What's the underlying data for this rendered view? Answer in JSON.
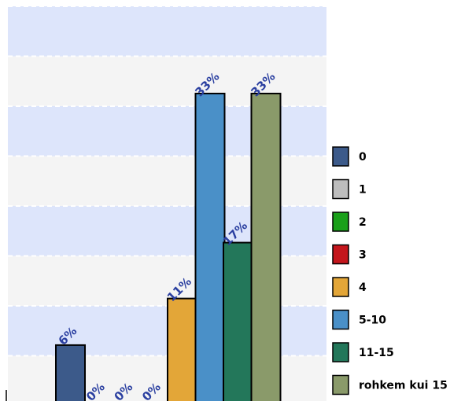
{
  "chart_data": {
    "type": "bar",
    "title": "",
    "xlabel": "",
    "ylabel": "",
    "ylim": [
      0,
      36
    ],
    "grid": true,
    "legend_position": "right",
    "categories": [
      "0",
      "1",
      "2",
      "3",
      "4",
      "5-10",
      "11-15",
      "rohkem kui 15"
    ],
    "values": [
      6,
      0,
      0,
      0,
      11,
      33,
      17,
      33
    ],
    "data_labels": [
      "6%",
      "0%",
      "0%",
      "0%",
      "11%",
      "33%",
      "17%",
      "33%"
    ],
    "colors": [
      "#3c5a8a",
      "#bdbdbd",
      "#1aa01a",
      "#c4161c",
      "#e3a638",
      "#4a90c8",
      "#23775a",
      "#8a9a6a"
    ],
    "label_color": "#2a3fa0",
    "band_colors": [
      "#dde5fb",
      "#f4f4f4"
    ]
  }
}
